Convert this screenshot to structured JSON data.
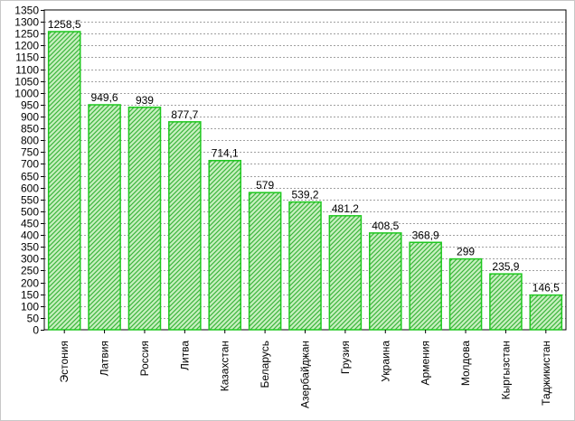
{
  "chart_data": {
    "type": "bar",
    "categories": [
      "Эстония",
      "Латвия",
      "Россия",
      "Литва",
      "Казахстан",
      "Беларусь",
      "Азербайджан",
      "Грузия",
      "Украина",
      "Армения",
      "Молдова",
      "Кыргызстан",
      "Таджикистан"
    ],
    "values": [
      1258.5,
      949.6,
      939,
      877.7,
      714.1,
      579,
      539.2,
      481.2,
      408.5,
      368.9,
      299,
      235.9,
      146.5
    ],
    "value_labels": [
      "1258,5",
      "949,6",
      "939",
      "877,7",
      "714,1",
      "579",
      "539,2",
      "481,2",
      "408,5",
      "368,9",
      "299",
      "235,9",
      "146,5"
    ],
    "title": "",
    "xlabel": "",
    "ylabel": "",
    "ylim": [
      0,
      1350
    ],
    "y_tick_step": 50,
    "grid": true,
    "bar_fill": "#c8f0c0",
    "bar_hatch": "#3cb43c",
    "bar_border": "#1ec81e"
  }
}
